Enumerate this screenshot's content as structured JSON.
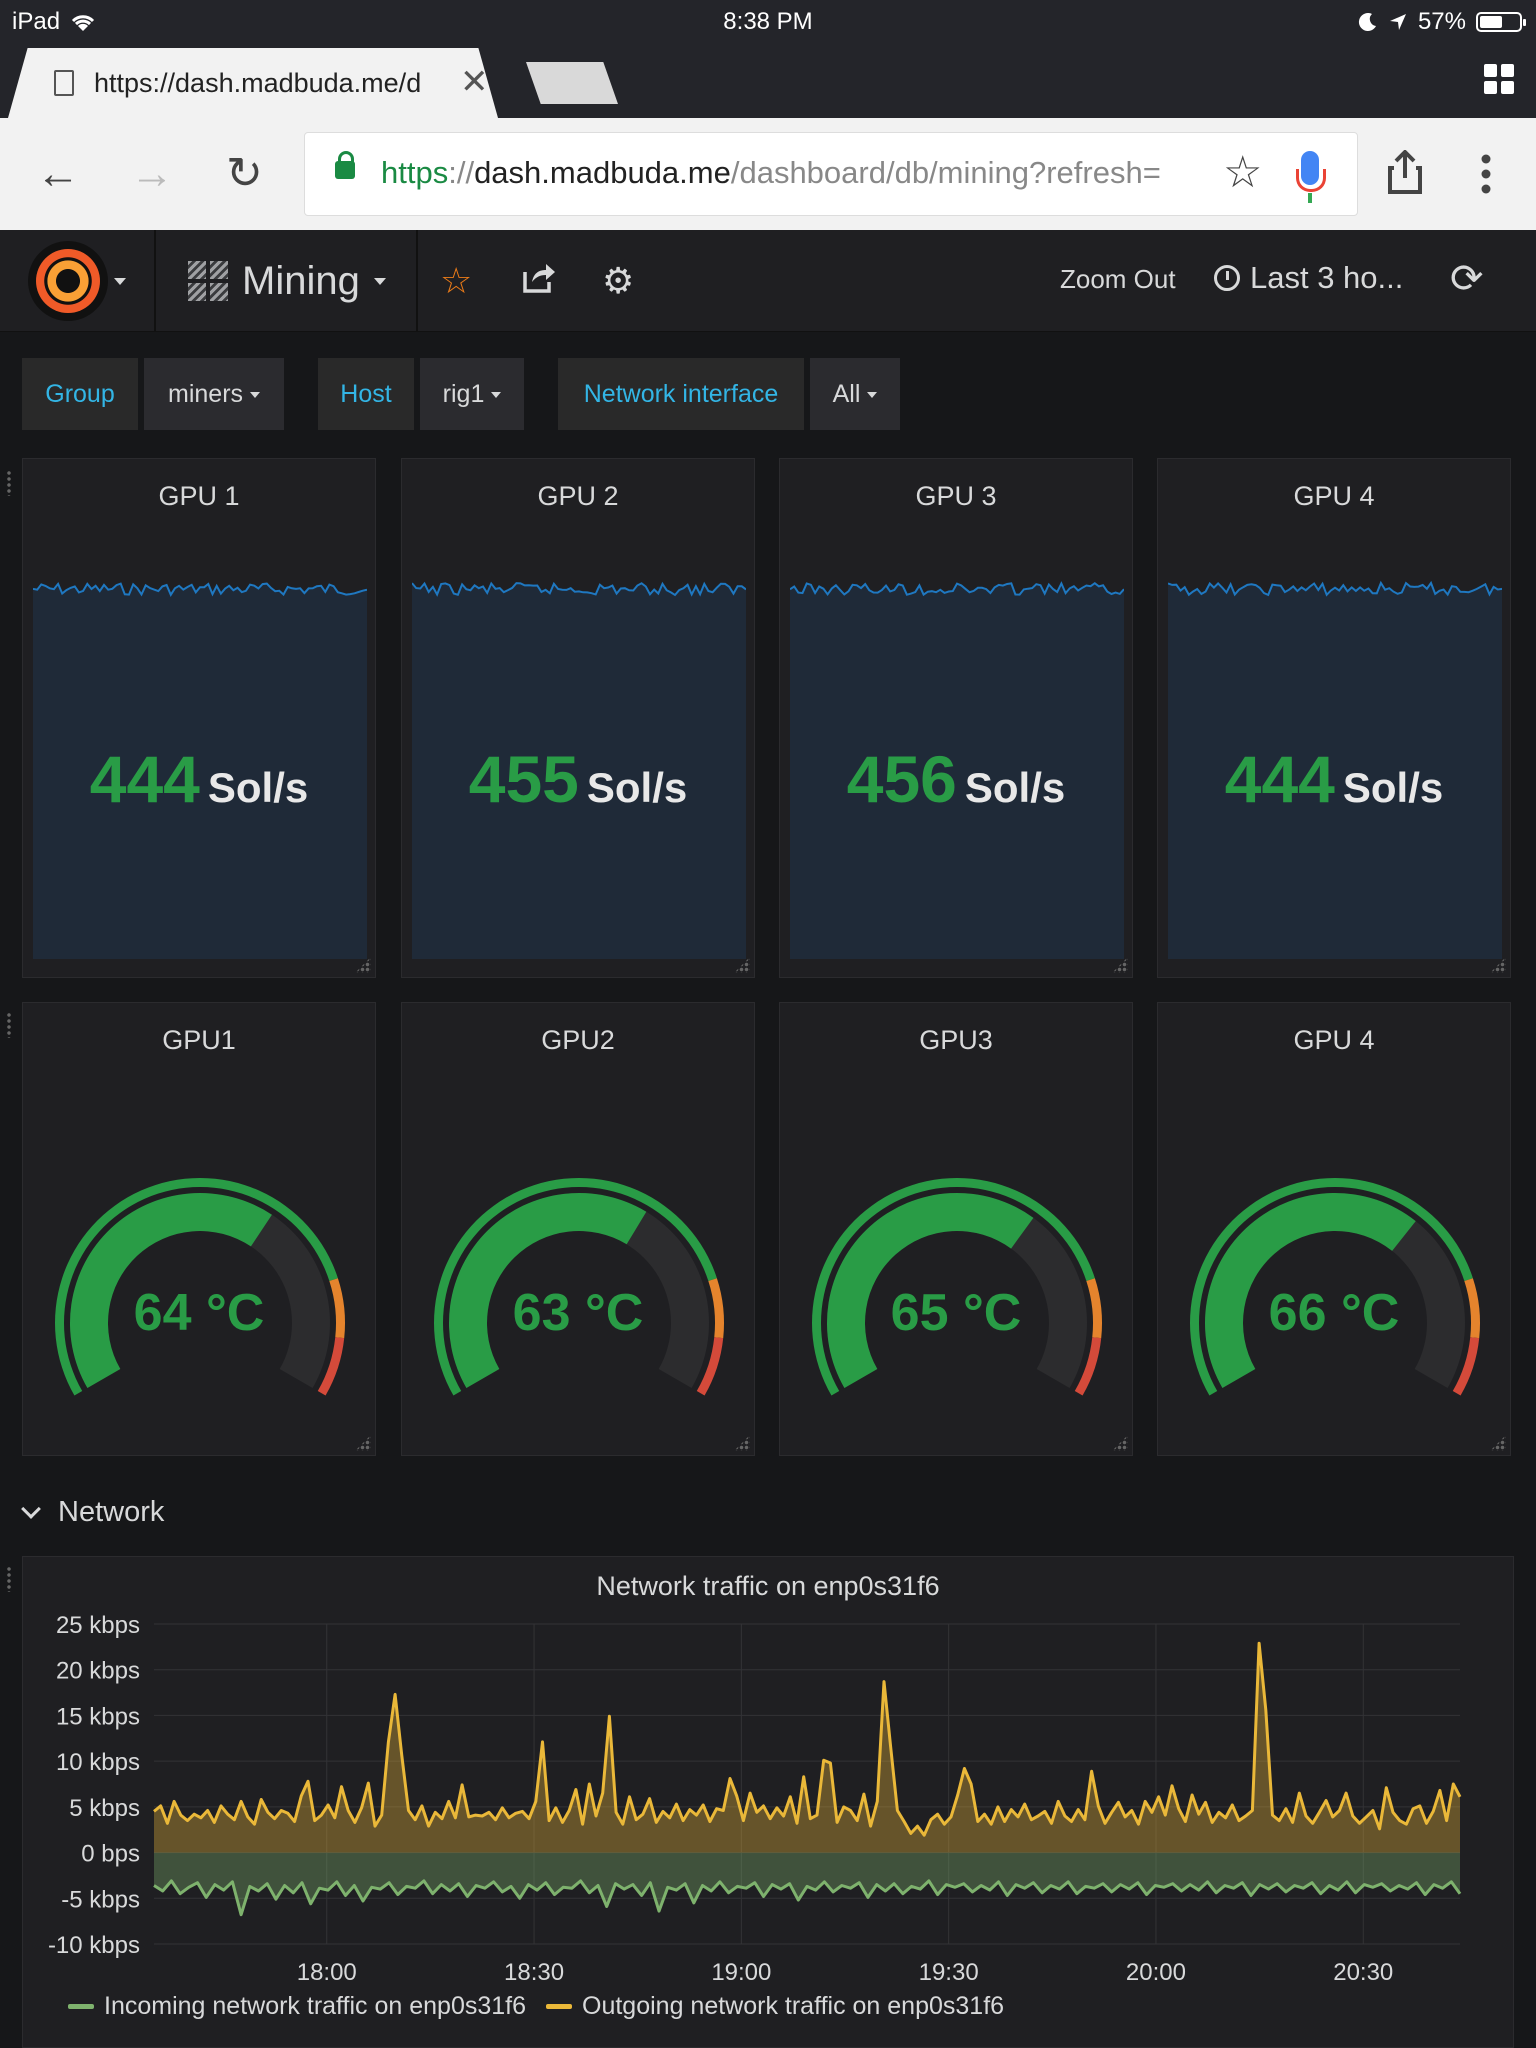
{
  "status_bar": {
    "device": "iPad",
    "time": "8:38 PM",
    "battery": "57%",
    "battery_level": 0.57
  },
  "browser": {
    "tab_title": "https://dash.madbuda.me/d",
    "url_scheme": "https",
    "url_sep": "://",
    "url_host": "dash.madbuda.me",
    "url_path": "/dashboard/db/mining?refresh=",
    "icons": {
      "back": "back-arrow-icon",
      "forward": "forward-arrow-icon",
      "reload": "reload-icon",
      "bookmark": "star-icon",
      "voice": "microphone-icon",
      "share": "share-icon",
      "menu": "more-vertical-icon"
    }
  },
  "navbar": {
    "dashboard_title": "Mining",
    "zoom_out": "Zoom Out",
    "time_range": "Last 3 ho...",
    "colors": {
      "star": "#eb7b18",
      "text": "#d8d9da"
    }
  },
  "variables": [
    {
      "label": "Group",
      "value": "miners"
    },
    {
      "label": "Host",
      "value": "rig1"
    },
    {
      "label": "Network interface",
      "value": "All"
    }
  ],
  "hashrate_panels": [
    {
      "title": "GPU 1",
      "value": "444",
      "unit": "Sol/s"
    },
    {
      "title": "GPU 2",
      "value": "455",
      "unit": "Sol/s"
    },
    {
      "title": "GPU 3",
      "value": "456",
      "unit": "Sol/s"
    },
    {
      "title": "GPU 4",
      "value": "444",
      "unit": "Sol/s"
    }
  ],
  "temperature_panels": [
    {
      "title": "GPU1",
      "value": 64,
      "label": "64 °C"
    },
    {
      "title": "GPU2",
      "value": 63,
      "label": "63 °C"
    },
    {
      "title": "GPU3",
      "value": 65,
      "label": "65 °C"
    },
    {
      "title": "GPU 4",
      "value": 66,
      "label": "66 °C"
    }
  ],
  "gauge_colors": {
    "ok": "#299c46",
    "warn": "#e5842d",
    "crit": "#d44a3a",
    "track": "#2c2c2e"
  },
  "network_row": {
    "title": "Network"
  },
  "chart_data": {
    "type": "area",
    "title": "Network traffic on enp0s31f6",
    "y_ticks": [
      "25 kbps",
      "20 kbps",
      "15 kbps",
      "10 kbps",
      "5 kbps",
      "0 bps",
      "-5 kbps",
      "-10 kbps"
    ],
    "ylim": [
      -10,
      25
    ],
    "x_ticks": [
      "18:00",
      "18:30",
      "19:00",
      "19:30",
      "20:00",
      "20:30"
    ],
    "x_range": [
      "17:35",
      "20:44"
    ],
    "grid": true,
    "legend_position": "bottom",
    "series": [
      {
        "name": "Incoming network traffic on enp0s31f6",
        "color": "#7eb26d",
        "values": [
          -3.6,
          -4.2,
          -3.1,
          -4.5,
          -3.8,
          -3.3,
          -4.9,
          -3.5,
          -4.1,
          -3.2,
          -6.8,
          -3.7,
          -4.2,
          -3.4,
          -5.1,
          -3.6,
          -4.4,
          -3.3,
          -5.6,
          -3.9,
          -4.1,
          -3.2,
          -4.7,
          -3.6,
          -5.3,
          -3.8,
          -4.0,
          -3.3,
          -4.6,
          -3.7,
          -3.9,
          -3.1,
          -4.5,
          -3.5,
          -4.2,
          -3.4,
          -4.8,
          -3.6,
          -3.9,
          -3.2,
          -4.3,
          -3.7,
          -5.0,
          -3.5,
          -4.1,
          -3.3,
          -4.6,
          -3.8,
          -3.9,
          -3.1,
          -4.4,
          -3.6,
          -5.9,
          -3.4,
          -4.0,
          -3.5,
          -4.7,
          -3.3,
          -6.4,
          -3.8,
          -4.1,
          -3.4,
          -5.5,
          -3.6,
          -4.2,
          -3.2,
          -4.4,
          -3.7,
          -3.9,
          -3.3,
          -4.8,
          -3.5,
          -4.0,
          -3.4,
          -5.2,
          -3.7,
          -4.1,
          -3.2,
          -4.3,
          -3.6,
          -3.9,
          -3.3,
          -4.9,
          -3.5,
          -4.2,
          -3.4,
          -4.5,
          -3.7,
          -4.0,
          -3.1,
          -4.6,
          -3.5,
          -3.8,
          -3.4,
          -4.3,
          -3.6,
          -4.1,
          -3.2,
          -4.7,
          -3.5,
          -3.9,
          -3.3,
          -4.4,
          -3.6,
          -4.0,
          -3.2,
          -4.5,
          -3.7,
          -3.9,
          -3.4,
          -4.3,
          -3.5,
          -4.0,
          -3.3,
          -4.6,
          -3.6,
          -3.8,
          -3.4,
          -4.2,
          -3.5,
          -4.1,
          -3.2,
          -4.4,
          -3.6,
          -3.9,
          -3.3,
          -4.7,
          -3.5,
          -4.0,
          -3.4,
          -4.3,
          -3.6,
          -3.9,
          -3.3,
          -4.5,
          -3.6,
          -4.1,
          -3.2,
          -4.4,
          -3.5,
          -3.8,
          -3.4,
          -4.2,
          -3.6,
          -4.0,
          -3.3,
          -4.6,
          -3.5,
          -3.9,
          -3.2,
          -4.5
        ]
      },
      {
        "name": "Outgoing network traffic on enp0s31f6",
        "color": "#eab839",
        "values": [
          4.5,
          5.1,
          3.2,
          5.6,
          4.1,
          3.5,
          4.2,
          3.8,
          4.6,
          3.3,
          5.1,
          4.2,
          3.6,
          5.6,
          3.9,
          3.1,
          5.8,
          4.4,
          3.7,
          4.6,
          4.3,
          3.4,
          6.2,
          7.8,
          3.5,
          4.1,
          5.2,
          3.8,
          7.2,
          4.6,
          3.3,
          4.9,
          7.6,
          2.9,
          4.1,
          12.1,
          17.3,
          10.6,
          4.6,
          3.6,
          5.1,
          2.9,
          4.4,
          3.7,
          5.6,
          3.8,
          7.4,
          3.9,
          4.1,
          4.0,
          4.4,
          3.6,
          4.9,
          3.8,
          4.3,
          4.5,
          3.7,
          5.6,
          12.1,
          3.5,
          4.9,
          3.3,
          4.6,
          6.9,
          3.1,
          7.5,
          4.0,
          6.5,
          14.9,
          4.4,
          3.1,
          6.1,
          3.6,
          4.2,
          5.9,
          3.3,
          4.5,
          3.8,
          5.3,
          3.5,
          4.7,
          4.1,
          5.2,
          3.4,
          4.8,
          4.6,
          8.1,
          6.2,
          3.5,
          6.5,
          4.4,
          5.1,
          3.7,
          4.9,
          4.0,
          6.1,
          3.2,
          8.3,
          3.7,
          4.1,
          10.1,
          9.8,
          3.3,
          5.0,
          4.6,
          3.5,
          6.4,
          2.9,
          5.6,
          18.7,
          11.5,
          4.6,
          3.4,
          2.1,
          2.9,
          1.9,
          3.6,
          4.2,
          3.1,
          3.9,
          6.3,
          9.2,
          7.5,
          3.4,
          4.2,
          3.1,
          5.0,
          3.4,
          4.7,
          3.9,
          5.3,
          3.6,
          4.0,
          4.5,
          3.2,
          5.6,
          4.0,
          3.4,
          4.7,
          3.6,
          8.9,
          5.1,
          3.2,
          4.4,
          5.5,
          3.9,
          4.6,
          3.1,
          5.6,
          4.4,
          6.1,
          4.1,
          7.3,
          4.8,
          3.4,
          6.3,
          4.2,
          5.5,
          3.3,
          4.4,
          3.8,
          5.2,
          3.5,
          4.0,
          4.6,
          22.9,
          15.6,
          4.1,
          3.5,
          4.8,
          3.3,
          6.5,
          4.0,
          3.2,
          4.4,
          5.7,
          3.9,
          4.6,
          6.5,
          4.0,
          3.2,
          3.9,
          4.6,
          2.6,
          7.1,
          4.4,
          3.5,
          3.1,
          4.8,
          5.1,
          3.2,
          4.5,
          6.8,
          3.5,
          7.5,
          6.1
        ]
      }
    ]
  }
}
